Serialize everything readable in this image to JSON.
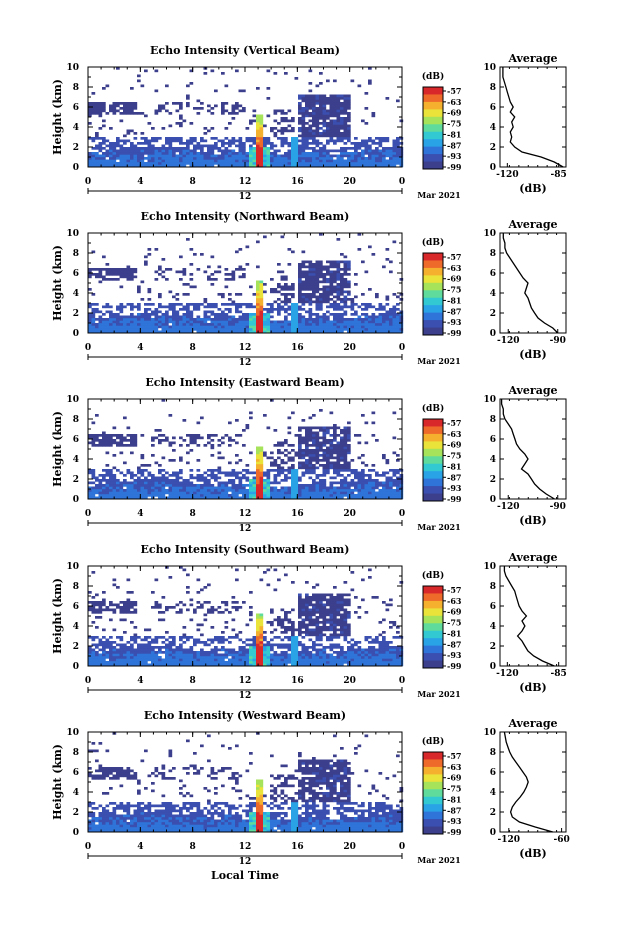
{
  "chart_data": [
    {
      "type": "heatmap",
      "title": "Echo Intensity (Vertical Beam)",
      "ylabel": "Height (km)",
      "xlabel": "",
      "x_ticks": [
        "0",
        "4",
        "8",
        "12",
        "16",
        "20",
        "0"
      ],
      "x_sub_label": "12",
      "date_label": "Mar 2021",
      "yticks": [
        "0",
        "2",
        "4",
        "6",
        "8",
        "10"
      ],
      "ylim": [
        0,
        10
      ],
      "xlim": [
        0,
        24
      ],
      "colorbar": {
        "unit": "(dB)",
        "ticks": [
          "-57",
          "-63",
          "-69",
          "-75",
          "-81",
          "-87",
          "-93",
          "-99"
        ]
      },
      "profile": {
        "title": "Average",
        "xlabel": "(dB)",
        "xticks": [
          "-120",
          "-85"
        ],
        "xlim": [
          -125,
          -80
        ],
        "heights": [
          0,
          0.5,
          1,
          1.5,
          2,
          2.5,
          3,
          3.5,
          4,
          4.5,
          5,
          5.5,
          6,
          6.5,
          7,
          7.5,
          8,
          8.5,
          9,
          9.5,
          10
        ],
        "values": [
          -82,
          -88,
          -97,
          -110,
          -115,
          -118,
          -117,
          -118,
          -116,
          -117,
          -115,
          -118,
          -116,
          -118,
          -119,
          -120,
          -121,
          -122,
          -123,
          -123,
          -123
        ]
      }
    },
    {
      "type": "heatmap",
      "title": "Echo Intensity (Northward Beam)",
      "ylabel": "Height (km)",
      "xlabel": "",
      "x_ticks": [
        "0",
        "4",
        "8",
        "12",
        "16",
        "20",
        "0"
      ],
      "x_sub_label": "12",
      "date_label": "Mar 2021",
      "yticks": [
        "0",
        "2",
        "4",
        "6",
        "8",
        "10"
      ],
      "ylim": [
        0,
        10
      ],
      "xlim": [
        0,
        24
      ],
      "colorbar": {
        "unit": "(dB)",
        "ticks": [
          "-57",
          "-63",
          "-69",
          "-75",
          "-81",
          "-87",
          "-93",
          "-99"
        ]
      },
      "profile": {
        "title": "Average",
        "xlabel": "(dB)",
        "xticks": [
          "-120",
          "-90"
        ],
        "xlim": [
          -125,
          -85
        ],
        "heights": [
          0,
          0.5,
          1,
          1.5,
          2,
          2.5,
          3,
          3.5,
          4,
          4.5,
          5,
          5.5,
          6,
          6.5,
          7,
          7.5,
          8,
          8.5,
          9,
          9.5,
          10
        ],
        "values": [
          -90,
          -93,
          -98,
          -102,
          -104,
          -106,
          -107,
          -108,
          -110,
          -109,
          -108,
          -111,
          -113,
          -115,
          -117,
          -119,
          -121,
          -122,
          -122,
          -123,
          -123
        ]
      }
    },
    {
      "type": "heatmap",
      "title": "Echo Intensity (Eastward Beam)",
      "ylabel": "Height (km)",
      "xlabel": "",
      "x_ticks": [
        "0",
        "4",
        "8",
        "12",
        "16",
        "20",
        "0"
      ],
      "x_sub_label": "12",
      "date_label": "Mar 2021",
      "yticks": [
        "0",
        "2",
        "4",
        "6",
        "8",
        "10"
      ],
      "ylim": [
        0,
        10
      ],
      "xlim": [
        0,
        24
      ],
      "colorbar": {
        "unit": "(dB)",
        "ticks": [
          "-57",
          "-63",
          "-69",
          "-75",
          "-81",
          "-87",
          "-93",
          "-99"
        ]
      },
      "profile": {
        "title": "Average",
        "xlabel": "(dB)",
        "xticks": [
          "-120",
          "-90"
        ],
        "xlim": [
          -125,
          -85
        ],
        "heights": [
          0,
          0.5,
          1,
          1.5,
          2,
          2.5,
          3,
          3.5,
          4,
          4.5,
          5,
          5.5,
          6,
          6.5,
          7,
          7.5,
          8,
          8.5,
          9,
          9.5,
          10
        ],
        "values": [
          -92,
          -97,
          -101,
          -104,
          -106,
          -108,
          -112,
          -110,
          -108,
          -110,
          -113,
          -115,
          -116,
          -117,
          -118,
          -120,
          -122,
          -123,
          -123,
          -124,
          -124
        ]
      }
    },
    {
      "type": "heatmap",
      "title": "Echo Intensity (Southward Beam)",
      "ylabel": "Height (km)",
      "xlabel": "",
      "x_ticks": [
        "0",
        "4",
        "8",
        "12",
        "16",
        "20",
        "0"
      ],
      "x_sub_label": "12",
      "date_label": "Mar 2021",
      "yticks": [
        "0",
        "2",
        "4",
        "6",
        "8",
        "10"
      ],
      "ylim": [
        0,
        10
      ],
      "xlim": [
        0,
        24
      ],
      "colorbar": {
        "unit": "(dB)",
        "ticks": [
          "-57",
          "-63",
          "-69",
          "-75",
          "-81",
          "-87",
          "-93",
          "-99"
        ]
      },
      "profile": {
        "title": "Average",
        "xlabel": "(dB)",
        "xticks": [
          "-120",
          "-85"
        ],
        "xlim": [
          -125,
          -80
        ],
        "heights": [
          0,
          0.5,
          1,
          1.5,
          2,
          2.5,
          3,
          3.5,
          4,
          4.5,
          5,
          5.5,
          6,
          6.5,
          7,
          7.5,
          8,
          8.5,
          9,
          9.5,
          10
        ],
        "values": [
          -88,
          -96,
          -102,
          -106,
          -108,
          -110,
          -113,
          -110,
          -108,
          -110,
          -107,
          -110,
          -112,
          -113,
          -114,
          -115,
          -117,
          -119,
          -121,
          -122,
          -122
        ]
      }
    },
    {
      "type": "heatmap",
      "title": "Echo Intensity (Westward Beam)",
      "ylabel": "Height (km)",
      "xlabel": "Local Time",
      "x_ticks": [
        "0",
        "4",
        "8",
        "12",
        "16",
        "20",
        "0"
      ],
      "x_sub_label": "12",
      "date_label": "Mar 2021",
      "yticks": [
        "0",
        "2",
        "4",
        "6",
        "8",
        "10"
      ],
      "ylim": [
        0,
        10
      ],
      "xlim": [
        0,
        24
      ],
      "colorbar": {
        "unit": "(dB)",
        "ticks": [
          "-57",
          "-63",
          "-69",
          "-75",
          "-81",
          "-87",
          "-93",
          "-99"
        ]
      },
      "profile": {
        "title": "Average",
        "xlabel": "(dB)",
        "xticks": [
          "-120",
          "-60"
        ],
        "xlim": [
          -130,
          -55
        ],
        "heights": [
          0,
          0.5,
          1,
          1.5,
          2,
          2.5,
          3,
          3.5,
          4,
          4.5,
          5,
          5.5,
          6,
          6.5,
          7,
          7.5,
          8,
          8.5,
          9,
          9.5,
          10
        ],
        "values": [
          -70,
          -90,
          -108,
          -116,
          -118,
          -116,
          -112,
          -107,
          -103,
          -100,
          -98,
          -100,
          -104,
          -108,
          -112,
          -116,
          -119,
          -121,
          -123,
          -124,
          -125
        ]
      }
    }
  ],
  "colors": {
    "colormap": [
      "#3b3f8c",
      "#3a4fb0",
      "#2f74d8",
      "#2aa2e6",
      "#33c9d2",
      "#5fdc9c",
      "#a6e25a",
      "#e9e33a",
      "#f5b02e",
      "#ee6a2a",
      "#d8282a"
    ]
  }
}
